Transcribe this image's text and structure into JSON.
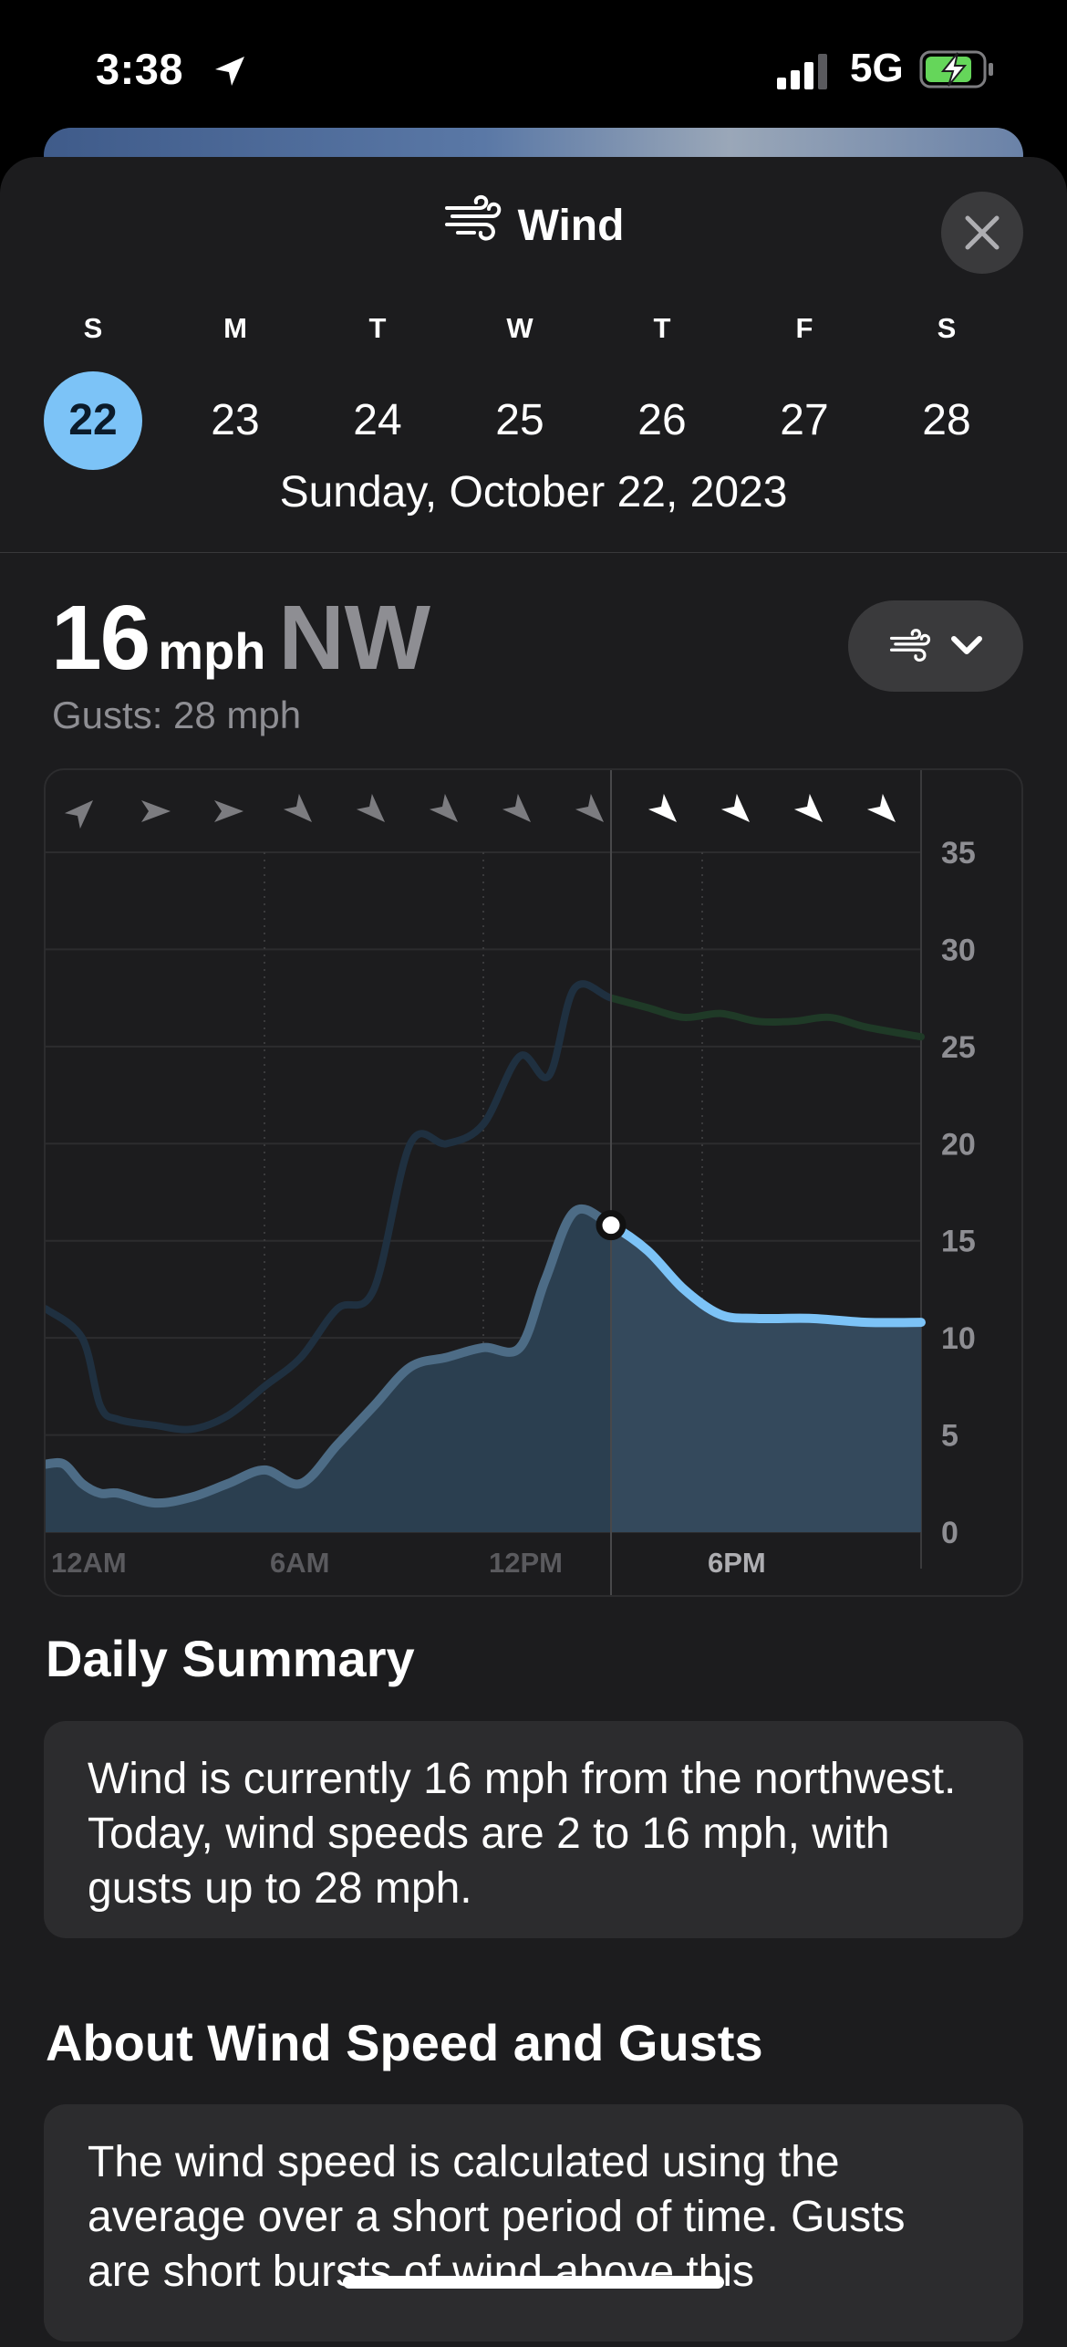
{
  "status_bar": {
    "time": "3:38",
    "network": "5G"
  },
  "header": {
    "title": "Wind"
  },
  "days": [
    {
      "letter": "S",
      "num": "22",
      "selected": true
    },
    {
      "letter": "M",
      "num": "23"
    },
    {
      "letter": "T",
      "num": "24"
    },
    {
      "letter": "W",
      "num": "25"
    },
    {
      "letter": "T",
      "num": "26"
    },
    {
      "letter": "F",
      "num": "27"
    },
    {
      "letter": "S",
      "num": "28"
    }
  ],
  "date_full": "Sunday, October 22, 2023",
  "current": {
    "speed": "16",
    "unit": "mph",
    "direction": "NW",
    "gusts": "Gusts: 28 mph"
  },
  "chart_data": {
    "type": "area",
    "x_tick_labels": [
      "12AM",
      "6AM",
      "12PM",
      "6PM"
    ],
    "y_tick_labels": [
      "35",
      "30",
      "25",
      "20",
      "15",
      "10",
      "5",
      "0"
    ],
    "ylim": [
      0,
      35
    ],
    "xlim": [
      0,
      24
    ],
    "current_hour": 15.5,
    "series": [
      {
        "values": [
          [
            0,
            3.5
          ],
          [
            0.5,
            3.5
          ],
          [
            1,
            2.5
          ],
          [
            1.5,
            2
          ],
          [
            2,
            2
          ],
          [
            3,
            1.5
          ],
          [
            4,
            1.8
          ],
          [
            5,
            2.5
          ],
          [
            6,
            3.2
          ],
          [
            7,
            2.5
          ],
          [
            8,
            4.5
          ],
          [
            9,
            6.5
          ],
          [
            10,
            8.5
          ],
          [
            11,
            9
          ],
          [
            12,
            9.5
          ],
          [
            13,
            9.5
          ],
          [
            13.7,
            13
          ],
          [
            14.5,
            16.5
          ],
          [
            15.5,
            15.8
          ],
          [
            16.5,
            14.5
          ],
          [
            17.5,
            12.5
          ],
          [
            18.5,
            11.2
          ],
          [
            19.5,
            11
          ],
          [
            21,
            11
          ],
          [
            22.5,
            10.8
          ],
          [
            24,
            10.8
          ]
        ]
      },
      {
        "values": [
          [
            0,
            11.5
          ],
          [
            1,
            10
          ],
          [
            1.5,
            6.5
          ],
          [
            2,
            5.8
          ],
          [
            3,
            5.5
          ],
          [
            4,
            5.3
          ],
          [
            5,
            6
          ],
          [
            6,
            7.5
          ],
          [
            7,
            9
          ],
          [
            8,
            11.5
          ],
          [
            9,
            12.5
          ],
          [
            10,
            20
          ],
          [
            11,
            20
          ],
          [
            12,
            21
          ],
          [
            13,
            24.5
          ],
          [
            13.8,
            23.5
          ],
          [
            14.5,
            28
          ],
          [
            15.5,
            27.5
          ],
          [
            16.5,
            27
          ],
          [
            17.5,
            26.5
          ],
          [
            18.5,
            26.7
          ],
          [
            19.5,
            26.3
          ],
          [
            20.5,
            26.3
          ],
          [
            21.5,
            26.5
          ],
          [
            22.5,
            26
          ],
          [
            24,
            25.5
          ]
        ]
      }
    ],
    "direction_arrows": [
      {
        "hour": 1,
        "deg": 45
      },
      {
        "hour": 3,
        "deg": 90
      },
      {
        "hour": 5,
        "deg": 90
      },
      {
        "hour": 7,
        "deg": 135
      },
      {
        "hour": 9,
        "deg": 135
      },
      {
        "hour": 11,
        "deg": 135
      },
      {
        "hour": 13,
        "deg": 135
      },
      {
        "hour": 15,
        "deg": 135
      },
      {
        "hour": 17,
        "deg": 135
      },
      {
        "hour": 19,
        "deg": 135
      },
      {
        "hour": 21,
        "deg": 135
      },
      {
        "hour": 23,
        "deg": 135
      }
    ]
  },
  "daily_summary": {
    "heading": "Daily Summary",
    "text": "Wind is currently 16 mph from the northwest. Today, wind speeds are 2 to 16 mph, with gusts up to 28 mph."
  },
  "about": {
    "heading": "About Wind Speed and Gusts",
    "text": "The wind speed is calculated using the average over a short period of time. Gusts are short bursts of wind above this"
  }
}
